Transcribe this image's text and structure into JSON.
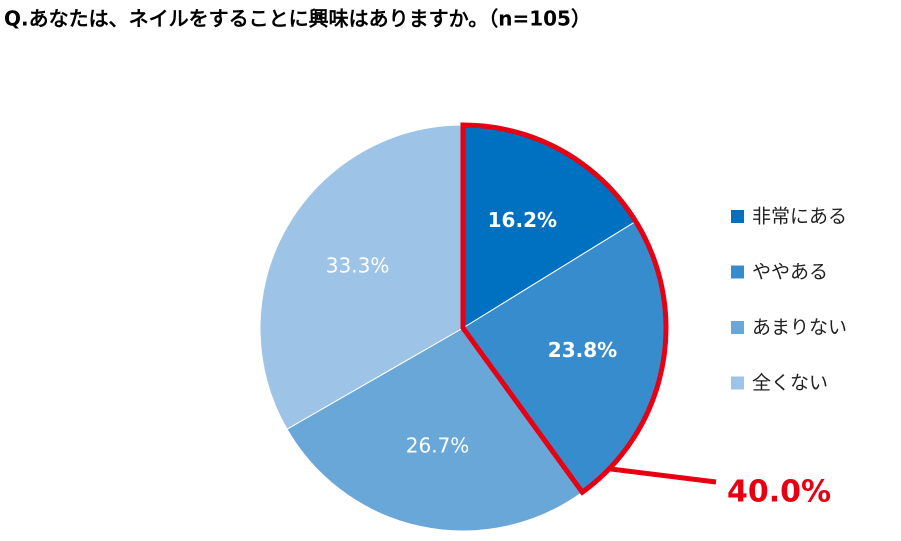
{
  "chart_data": {
    "type": "pie",
    "title": "Q.あなたは、ネイルをすることに興味はありますか。（n=105）",
    "categories": [
      "非常にある",
      "ややある",
      "あまりない",
      "全くない"
    ],
    "values": [
      16.2,
      23.8,
      26.7,
      33.3
    ],
    "value_labels": [
      "16.2%",
      "23.8%",
      "26.7%",
      "33.3%"
    ],
    "colors": [
      "#0070c0",
      "#378ccd",
      "#6aa7d9",
      "#9dc3e6"
    ],
    "annotation": "40.0%",
    "annotation_color": "#e60012",
    "legend": "right"
  }
}
